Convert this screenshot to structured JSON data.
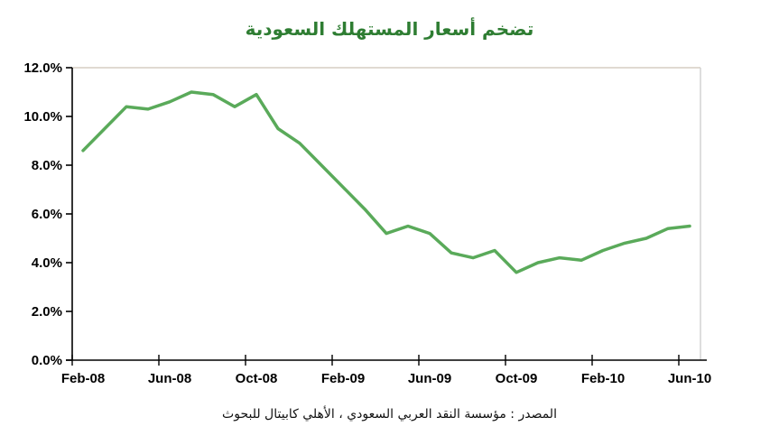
{
  "chart_data": {
    "type": "line",
    "title": "تضخم أسعار المستهلك السعودية",
    "source": "المصدر : مؤسسة النقد العربي السعودي ، الأهلي كابيتال للبحوث",
    "categories": [
      "Feb-08",
      "Mar-08",
      "Apr-08",
      "May-08",
      "Jun-08",
      "Jul-08",
      "Aug-08",
      "Sep-08",
      "Oct-08",
      "Nov-08",
      "Dec-08",
      "Jan-09",
      "Feb-09",
      "Mar-09",
      "Apr-09",
      "May-09",
      "Jun-09",
      "Jul-09",
      "Aug-09",
      "Sep-09",
      "Oct-09",
      "Nov-09",
      "Dec-09",
      "Jan-10",
      "Feb-10",
      "Mar-10",
      "Apr-10",
      "May-10",
      "Jun-10"
    ],
    "values": [
      8.6,
      9.5,
      10.4,
      10.3,
      10.6,
      11.0,
      10.9,
      10.4,
      10.9,
      9.5,
      8.9,
      8.0,
      7.1,
      6.2,
      5.2,
      5.5,
      5.2,
      4.4,
      4.2,
      4.5,
      3.6,
      4.0,
      4.2,
      4.1,
      4.5,
      4.8,
      5.0,
      5.4,
      5.5
    ],
    "x_tick_labels": [
      "Feb-08",
      "Jun-08",
      "Oct-08",
      "Feb-09",
      "Jun-09",
      "Oct-09",
      "Feb-10",
      "Jun-10"
    ],
    "x_tick_every": 4,
    "y_ticks": [
      0,
      2,
      4,
      6,
      8,
      10,
      12
    ],
    "y_tick_labels": [
      "0.0%",
      "2.0%",
      "4.0%",
      "6.0%",
      "8.0%",
      "10.0%",
      "12.0%"
    ],
    "ylim": [
      0,
      12
    ],
    "xlabel": "",
    "ylabel": "",
    "grid": false,
    "legend": false,
    "colors": {
      "line": "#5aaa5a",
      "title": "#2e7d32",
      "axis": "#000000",
      "border_top": "#d6cdc3",
      "border_right": "#d2d2d2"
    }
  }
}
